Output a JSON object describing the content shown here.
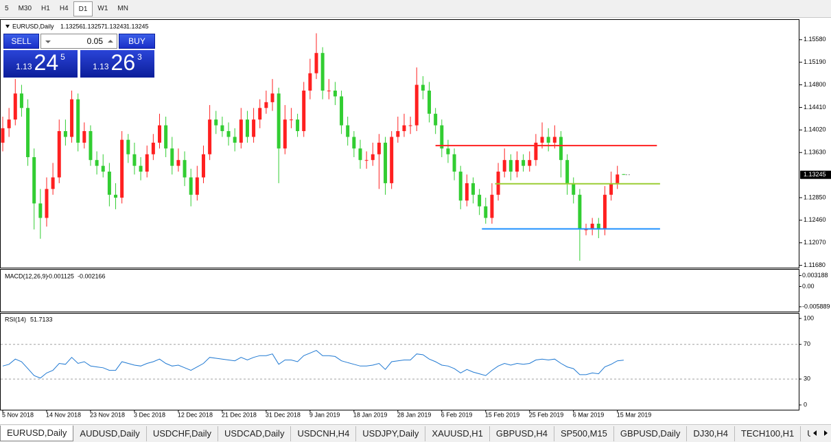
{
  "toolbar": {
    "buttons": [
      "5",
      "M30",
      "H1",
      "H4",
      "D1",
      "W1",
      "MN"
    ],
    "active": "D1"
  },
  "trade_panel": {
    "sell": "SELL",
    "buy": "BUY",
    "lot": "0.05",
    "bid": {
      "prefix": "1.13",
      "pips": "24",
      "point": "5"
    },
    "ask": {
      "prefix": "1.13",
      "pips": "26",
      "point": "3"
    }
  },
  "chart_data": {
    "type": "candlestick",
    "title": "EURUSD,Daily",
    "up_color": "#ff2020",
    "down_color": "#32cd32",
    "ylim": [
      1.1164,
      1.1591
    ],
    "yticks": [
      {
        "value": 1.1558,
        "label": "1.15580"
      },
      {
        "value": 1.1519,
        "label": "1.15190"
      },
      {
        "value": 1.148,
        "label": "1.14800"
      },
      {
        "value": 1.1441,
        "label": "1.14410"
      },
      {
        "value": 1.1402,
        "label": "1.14020"
      },
      {
        "value": 1.1363,
        "label": "1.13630"
      },
      {
        "value": 1.1285,
        "label": "1.12850"
      },
      {
        "value": 1.1246,
        "label": "1.12460"
      },
      {
        "value": 1.1207,
        "label": "1.12070"
      },
      {
        "value": 1.1168,
        "label": "1.11680"
      }
    ],
    "categories": [
      "5 Nov 2018",
      null,
      null,
      null,
      null,
      null,
      null,
      "14 Nov 2018",
      null,
      null,
      null,
      null,
      null,
      null,
      "23 Nov 2018",
      null,
      null,
      null,
      null,
      null,
      null,
      "3 Dec 2018",
      null,
      null,
      null,
      null,
      null,
      null,
      "12 Dec 2018",
      null,
      null,
      null,
      null,
      null,
      null,
      "21 Dec 2018",
      null,
      null,
      null,
      null,
      null,
      null,
      "31 Dec 2018",
      null,
      null,
      null,
      null,
      null,
      null,
      "9 Jan 2019",
      null,
      null,
      null,
      null,
      null,
      null,
      "18 Jan 2019",
      null,
      null,
      null,
      null,
      null,
      null,
      "28 Jan 2019",
      null,
      null,
      null,
      null,
      null,
      null,
      "6 Feb 2019",
      null,
      null,
      null,
      null,
      null,
      null,
      "15 Feb 2019",
      null,
      null,
      null,
      null,
      null,
      null,
      "25 Feb 2019",
      null,
      null,
      null,
      null,
      null,
      null,
      "6 Mar 2019",
      null,
      null,
      null,
      null,
      null,
      null,
      "15 Mar 2019",
      null
    ],
    "open": [
      1.138,
      1.1405,
      1.142,
      1.1465,
      1.144,
      1.1355,
      1.1275,
      1.125,
      1.13,
      1.132,
      1.14,
      1.139,
      1.1455,
      1.138,
      1.14,
      1.135,
      1.134,
      1.133,
      1.129,
      1.1285,
      1.1385,
      1.136,
      1.134,
      1.133,
      1.136,
      1.138,
      1.141,
      1.137,
      1.134,
      1.135,
      1.132,
      1.129,
      1.132,
      1.136,
      1.142,
      1.141,
      1.14,
      1.139,
      1.138,
      1.142,
      1.139,
      1.142,
      1.144,
      1.145,
      1.1465,
      1.137,
      1.142,
      1.142,
      1.14,
      1.147,
      1.15,
      1.1535,
      1.147,
      1.147,
      1.146,
      1.141,
      1.139,
      1.137,
      1.135,
      1.135,
      1.136,
      1.138,
      1.131,
      1.139,
      1.14,
      1.141,
      1.141,
      1.148,
      1.147,
      1.143,
      1.141,
      1.137,
      1.136,
      1.133,
      1.128,
      1.131,
      1.129,
      1.127,
      1.125,
      1.129,
      1.133,
      1.135,
      1.133,
      1.135,
      1.134,
      1.135,
      1.138,
      1.139,
      1.138,
      1.139,
      1.135,
      1.131,
      1.129,
      1.123,
      1.123,
      1.124,
      1.123,
      1.129,
      1.131,
      1.13256
    ],
    "high": [
      1.1425,
      1.144,
      1.149,
      1.148,
      1.1455,
      1.137,
      1.13,
      1.132,
      1.1345,
      1.142,
      1.142,
      1.147,
      1.1465,
      1.1415,
      1.141,
      1.1365,
      1.136,
      1.1345,
      1.131,
      1.14,
      1.1395,
      1.138,
      1.1355,
      1.1375,
      1.1395,
      1.143,
      1.1425,
      1.139,
      1.137,
      1.1365,
      1.1335,
      1.134,
      1.1375,
      1.1445,
      1.1435,
      1.1425,
      1.1415,
      1.1405,
      1.144,
      1.1435,
      1.144,
      1.1455,
      1.147,
      1.149,
      1.1475,
      1.1445,
      1.144,
      1.143,
      1.1485,
      1.1525,
      1.1569,
      1.1545,
      1.149,
      1.1485,
      1.147,
      1.1425,
      1.14,
      1.1385,
      1.1365,
      1.138,
      1.1395,
      1.139,
      1.14,
      1.1425,
      1.143,
      1.1425,
      1.151,
      1.1495,
      1.1485,
      1.144,
      1.142,
      1.1385,
      1.137,
      1.134,
      1.1325,
      1.132,
      1.13,
      1.1285,
      1.131,
      1.1345,
      1.137,
      1.136,
      1.1365,
      1.136,
      1.1365,
      1.1395,
      1.1415,
      1.1405,
      1.141,
      1.14,
      1.136,
      1.132,
      1.13,
      1.124,
      1.125,
      1.125,
      1.1305,
      1.133,
      1.134,
      1.13257
    ],
    "low": [
      1.1365,
      1.139,
      1.141,
      1.1425,
      1.134,
      1.123,
      1.1214,
      1.1235,
      1.129,
      1.131,
      1.1375,
      1.138,
      1.1365,
      1.137,
      1.134,
      1.1325,
      1.132,
      1.127,
      1.1265,
      1.1275,
      1.1345,
      1.1325,
      1.1315,
      1.132,
      1.135,
      1.137,
      1.1355,
      1.1325,
      1.133,
      1.1305,
      1.127,
      1.128,
      1.131,
      1.135,
      1.1395,
      1.139,
      1.1375,
      1.1365,
      1.137,
      1.138,
      1.138,
      1.1405,
      1.143,
      1.1435,
      1.131,
      1.136,
      1.1405,
      1.139,
      1.139,
      1.1455,
      1.149,
      1.1455,
      1.1455,
      1.1445,
      1.1395,
      1.1375,
      1.1355,
      1.1335,
      1.1335,
      1.134,
      1.13,
      1.129,
      1.13,
      1.138,
      1.139,
      1.1395,
      1.14,
      1.1455,
      1.1415,
      1.1395,
      1.1355,
      1.1345,
      1.1315,
      1.1265,
      1.127,
      1.1275,
      1.1255,
      1.124,
      1.124,
      1.128,
      1.132,
      1.1315,
      1.132,
      1.133,
      1.133,
      1.134,
      1.137,
      1.1365,
      1.137,
      1.132,
      1.129,
      1.1275,
      1.1176,
      1.122,
      1.122,
      1.1215,
      1.122,
      1.128,
      1.13,
      1.13243
    ],
    "close": [
      1.1405,
      1.142,
      1.1465,
      1.144,
      1.1355,
      1.1275,
      1.125,
      1.13,
      1.132,
      1.14,
      1.139,
      1.1455,
      1.138,
      1.14,
      1.135,
      1.134,
      1.133,
      1.129,
      1.1285,
      1.1385,
      1.136,
      1.134,
      1.133,
      1.136,
      1.138,
      1.141,
      1.137,
      1.134,
      1.135,
      1.132,
      1.129,
      1.132,
      1.136,
      1.142,
      1.141,
      1.14,
      1.139,
      1.138,
      1.142,
      1.139,
      1.142,
      1.144,
      1.145,
      1.1465,
      1.137,
      1.142,
      1.142,
      1.14,
      1.147,
      1.15,
      1.1535,
      1.147,
      1.147,
      1.146,
      1.141,
      1.139,
      1.137,
      1.135,
      1.135,
      1.136,
      1.138,
      1.131,
      1.139,
      1.14,
      1.141,
      1.141,
      1.148,
      1.147,
      1.143,
      1.141,
      1.137,
      1.136,
      1.133,
      1.128,
      1.131,
      1.129,
      1.127,
      1.125,
      1.129,
      1.133,
      1.135,
      1.133,
      1.135,
      1.134,
      1.135,
      1.138,
      1.139,
      1.138,
      1.139,
      1.135,
      1.131,
      1.129,
      1.123,
      1.123,
      1.124,
      1.123,
      1.129,
      1.131,
      1.1325,
      1.13245
    ],
    "levels": [
      {
        "value": 1.1375,
        "color": "#ff2020",
        "x": [
          69,
          104.3
        ]
      },
      {
        "value": 1.1309,
        "color": "#9acd32",
        "x": [
          78.5,
          104.8
        ]
      },
      {
        "value": 1.1231,
        "color": "#1e90ff",
        "x": [
          76.4,
          104.8
        ]
      }
    ],
    "macd": {
      "label": "MACD(12,26,9)",
      "main": -0.001125,
      "signal": -0.002166,
      "ylim": [
        -0.0075,
        0.0047
      ],
      "yticks": [
        0.003188,
        {
          "value": 0,
          "label": "0.00"
        },
        -0.005889
      ]
    },
    "rsi": {
      "label": "RSI(14)",
      "color": "#1e78d2",
      "ylim": [
        0,
        100
      ],
      "yticks": [
        100,
        70,
        30,
        0
      ],
      "values": [
        45,
        47,
        53,
        50,
        42,
        34,
        31,
        37,
        40,
        48,
        47,
        55,
        48,
        50,
        45,
        44,
        43,
        40,
        40,
        50,
        48,
        46,
        45,
        48,
        50,
        53,
        48,
        45,
        46,
        43,
        40,
        44,
        48,
        55,
        54,
        53,
        52,
        51,
        55,
        52,
        55,
        57,
        57,
        59,
        47,
        52,
        52,
        50,
        57,
        60,
        63,
        57,
        57,
        56,
        51,
        49,
        47,
        45,
        45,
        46,
        48,
        41,
        50,
        51,
        52,
        52,
        59,
        58,
        53,
        50,
        46,
        45,
        42,
        37,
        41,
        38,
        36,
        34,
        40,
        45,
        48,
        46,
        48,
        47,
        48,
        52,
        53,
        52,
        53,
        48,
        44,
        42,
        35,
        35,
        37,
        36,
        44,
        47,
        51,
        51.7133
      ]
    }
  },
  "tabs": [
    "EURUSD,Daily",
    "AUDUSD,Daily",
    "USDCHF,Daily",
    "USDCAD,Daily",
    "USDCNH,H4",
    "USDJPY,Daily",
    "XAUUSD,H1",
    "GBPUSD,H4",
    "SP500,M15",
    "GBPUSD,Daily",
    "DJ30,H4",
    "TECH100,H1",
    "UKC"
  ],
  "active_tab": "EURUSD,Daily"
}
